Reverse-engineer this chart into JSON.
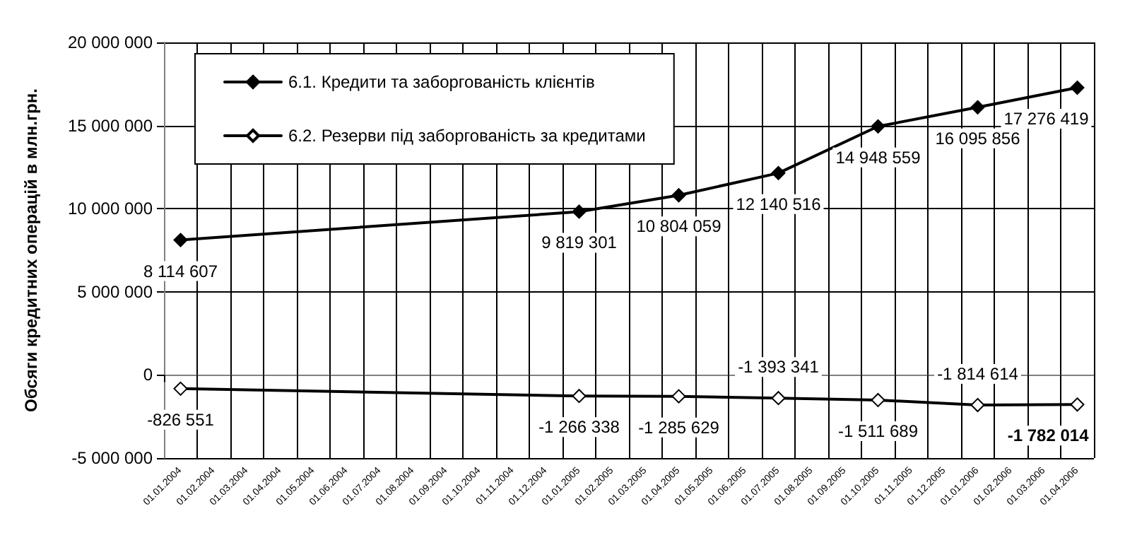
{
  "chart_data": {
    "type": "line",
    "ylabel": "Обсяги кредитних операцій в млн.грн.",
    "categories": [
      "01.01.2004",
      "01.02.2004",
      "01.03.2004",
      "01.04.2004",
      "01.05.2004",
      "01.06.2004",
      "01.07.2004",
      "01.08.2004",
      "01.09.2004",
      "01.10.2004",
      "01.11.2004",
      "01.12.2004",
      "01.01.2005",
      "01.02.2005",
      "01.03.2005",
      "01.04.2005",
      "01.05.2005",
      "01.06.2005",
      "01.07.2005",
      "01.08.2005",
      "01.09.2005",
      "01.10.2005",
      "01.11.2005",
      "01.12.2005",
      "01.01.2006",
      "01.02.2006",
      "01.03.2006",
      "01.04.2006"
    ],
    "series": [
      {
        "name": "6.1. Кредити та заборгованість клієнтів",
        "color": "#000000",
        "values": [
          8114607,
          null,
          null,
          null,
          null,
          null,
          null,
          null,
          null,
          null,
          null,
          null,
          9819301,
          null,
          null,
          10804059,
          null,
          null,
          12140516,
          null,
          null,
          14948559,
          null,
          null,
          16095856,
          null,
          null,
          17276419
        ]
      },
      {
        "name": "6.2. Резерви під заборгованість за кредитами",
        "color": "#000000",
        "values": [
          -826551,
          null,
          null,
          null,
          null,
          null,
          null,
          null,
          null,
          null,
          null,
          null,
          -1266338,
          null,
          null,
          -1285629,
          null,
          null,
          -1393341,
          null,
          null,
          -1511689,
          null,
          null,
          -1814614,
          null,
          null,
          -1782014
        ]
      }
    ],
    "ylim": [
      -5000000,
      20000000
    ],
    "yticks": [
      -5000000,
      0,
      5000000,
      10000000,
      15000000,
      20000000
    ],
    "grid": true,
    "legend": "top left",
    "marker": "diamond",
    "line_style": "solid",
    "data_labels": true
  }
}
